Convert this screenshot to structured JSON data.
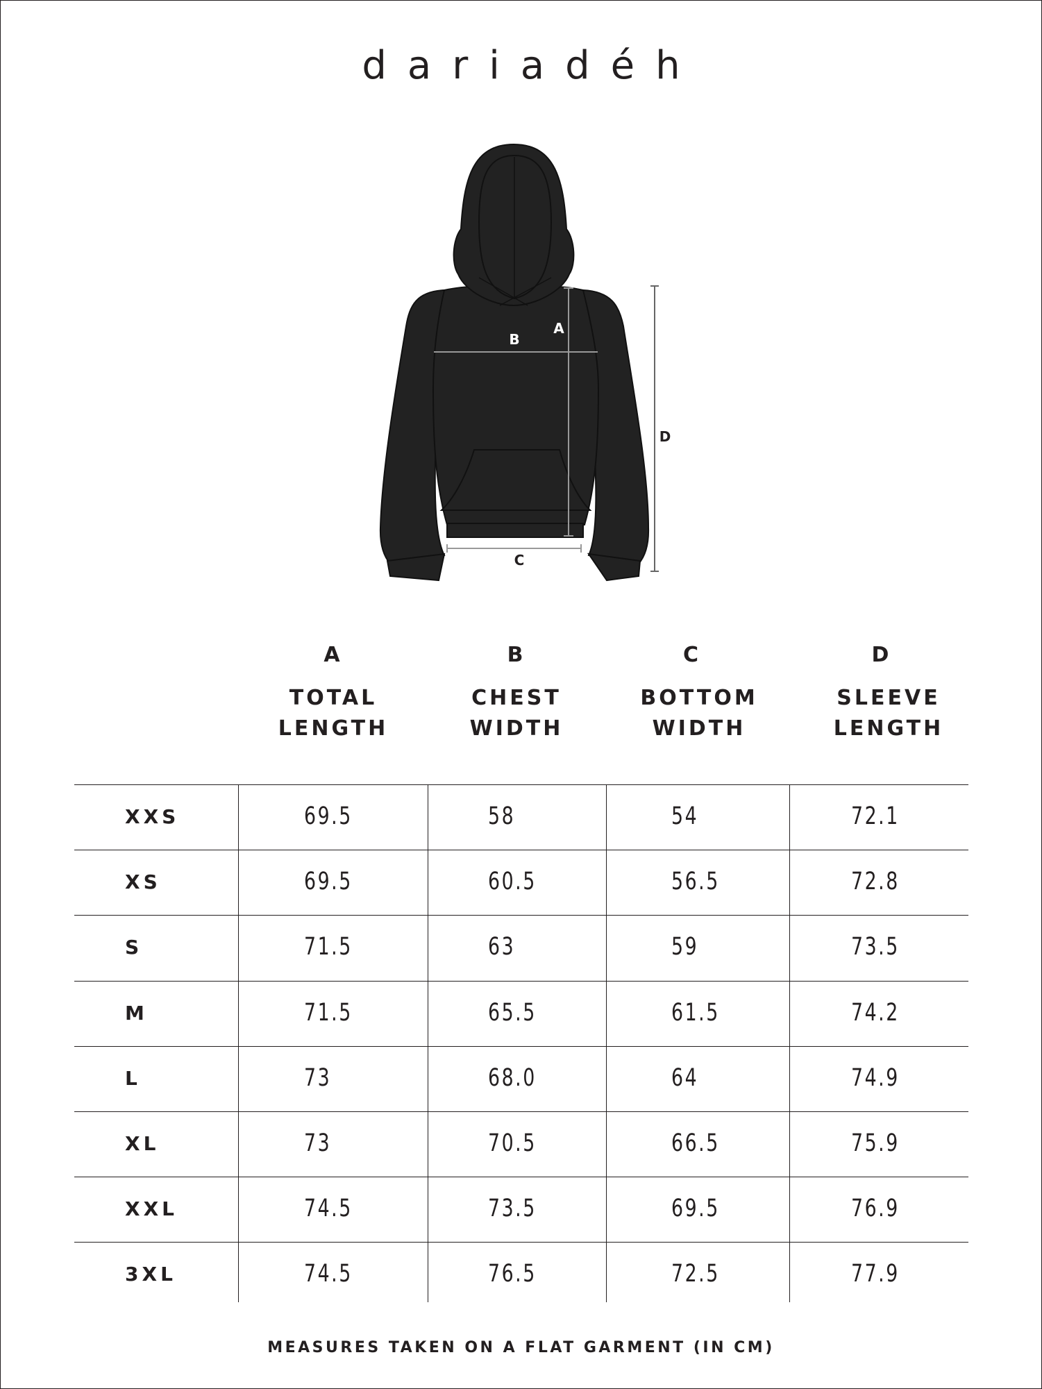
{
  "brand": "dariadéh",
  "diagram": {
    "labels": {
      "a": "A",
      "b": "B",
      "c": "C",
      "d": "D"
    },
    "garment_color": "#222222"
  },
  "table": {
    "columns": [
      {
        "letter": "A",
        "line1": "TOTAL",
        "line2": "LENGTH"
      },
      {
        "letter": "B",
        "line1": "CHEST",
        "line2": "WIDTH"
      },
      {
        "letter": "C",
        "line1": "BOTTOM",
        "line2": "WIDTH"
      },
      {
        "letter": "D",
        "line1": "SLEEVE",
        "line2": "LENGTH"
      }
    ],
    "rows": [
      {
        "size": "XXS",
        "values": [
          "69.5",
          "58",
          "54",
          "72.1"
        ]
      },
      {
        "size": "XS",
        "values": [
          "69.5",
          "60.5",
          "56.5",
          "72.8"
        ]
      },
      {
        "size": "S",
        "values": [
          "71.5",
          "63",
          "59",
          "73.5"
        ]
      },
      {
        "size": "M",
        "values": [
          "71.5",
          "65.5",
          "61.5",
          "74.2"
        ]
      },
      {
        "size": "L",
        "values": [
          "73",
          "68.0",
          "64",
          "74.9"
        ]
      },
      {
        "size": "XL",
        "values": [
          "73",
          "70.5",
          "66.5",
          "75.9"
        ]
      },
      {
        "size": "XXL",
        "values": [
          "74.5",
          "73.5",
          "69.5",
          "76.9"
        ]
      },
      {
        "size": "3XL",
        "values": [
          "74.5",
          "76.5",
          "72.5",
          "77.9"
        ]
      }
    ]
  },
  "footer": "MEASURES TAKEN ON A FLAT GARMENT (IN CM)"
}
